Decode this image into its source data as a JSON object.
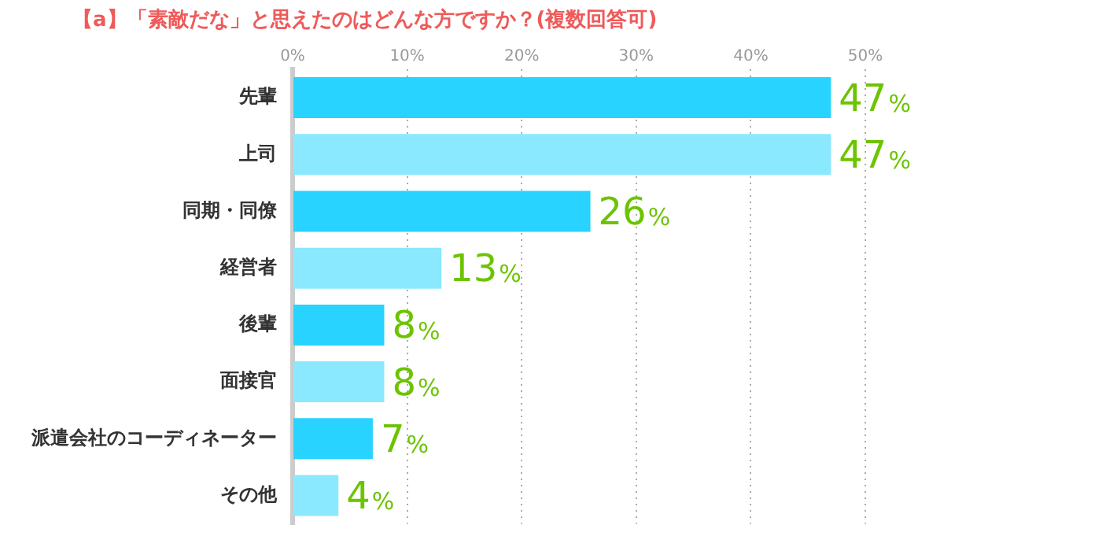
{
  "chart_data": {
    "type": "bar",
    "orientation": "horizontal",
    "title": "【a】「素敵だな」と思えたのはどんな方ですか？(複数回答可)",
    "categories": [
      "先輩",
      "上司",
      "同期・同僚",
      "経営者",
      "後輩",
      "面接官",
      "派遣会社のコーディネーター",
      "その他"
    ],
    "values": [
      47,
      47,
      26,
      13,
      8,
      8,
      7,
      4
    ],
    "colors": [
      "#29d3ff",
      "#8ae8ff",
      "#29d3ff",
      "#8ae8ff",
      "#29d3ff",
      "#8ae8ff",
      "#29d3ff",
      "#8ae8ff"
    ],
    "value_labels": [
      "47%",
      "47%",
      "26%",
      "13%",
      "8%",
      "8%",
      "7%",
      "4%"
    ],
    "xlim": [
      0,
      50
    ],
    "xticks": [
      {
        "value": 0,
        "label": "0%"
      },
      {
        "value": 10,
        "label": "10%"
      },
      {
        "value": 20,
        "label": "20%"
      },
      {
        "value": 30,
        "label": "30%"
      },
      {
        "value": 40,
        "label": "40%"
      },
      {
        "value": 50,
        "label": "50%"
      }
    ],
    "grid": "x",
    "legend": false
  }
}
